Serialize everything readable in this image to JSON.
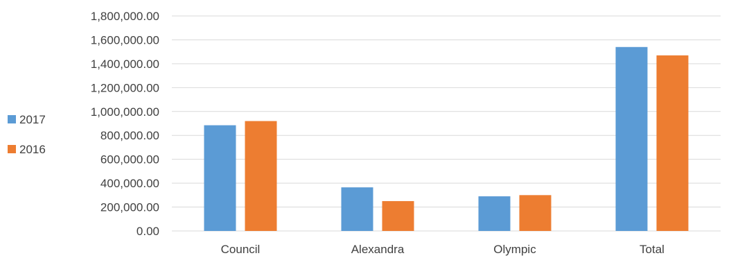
{
  "chart_data": {
    "type": "bar",
    "title": "",
    "xlabel": "",
    "ylabel": "",
    "categories": [
      "Council",
      "Alexandra",
      "Olympic",
      "Total"
    ],
    "series": [
      {
        "name": "2017",
        "color": "#5b9bd5",
        "values": [
          885000,
          365000,
          290000,
          1540000
        ]
      },
      {
        "name": "2016",
        "color": "#ed7d31",
        "values": [
          920000,
          250000,
          300000,
          1470000
        ]
      }
    ],
    "ylim": [
      0,
      1800000
    ],
    "y_ticks": [
      "0.00",
      "200,000.00",
      "400,000.00",
      "600,000.00",
      "800,000.00",
      "1,000,000.00",
      "1,200,000.00",
      "1,400,000.00",
      "1,600,000.00",
      "1,800,000.00"
    ],
    "grid": true,
    "legend_position": "left"
  }
}
